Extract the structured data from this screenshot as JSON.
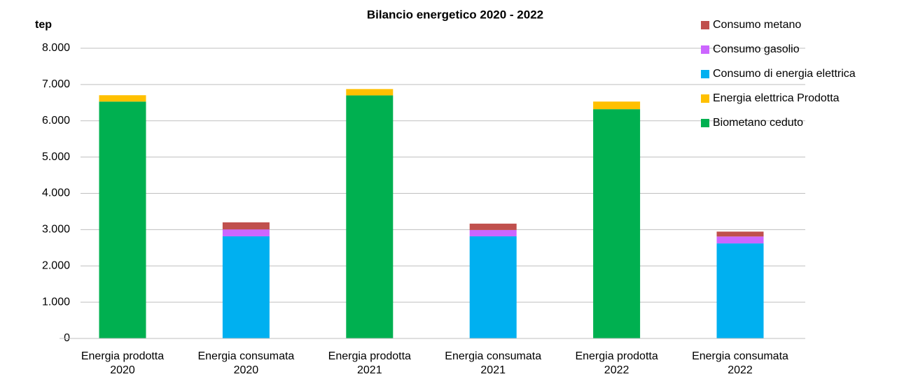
{
  "chart_data": {
    "type": "stacked_bar",
    "title": "Bilancio energetico 2020 - 2022",
    "y_axis_label": "tep",
    "categories": [
      [
        "Energia prodotta",
        "2020"
      ],
      [
        "Energia consumata",
        "2020"
      ],
      [
        "Energia prodotta",
        "2021"
      ],
      [
        "Energia consumata",
        "2021"
      ],
      [
        "Energia prodotta",
        "2022"
      ],
      [
        "Energia consumata",
        "2022"
      ]
    ],
    "series": [
      {
        "name": "Biometano ceduto",
        "color": "#00b050",
        "values": [
          6530,
          0,
          6700,
          0,
          6320,
          0
        ]
      },
      {
        "name": "Energia elettrica Prodotta",
        "color": "#ffc000",
        "values": [
          175,
          0,
          175,
          0,
          210,
          0
        ]
      },
      {
        "name": "Consumo di energia elettrica",
        "color": "#00b0f0",
        "values": [
          0,
          2815,
          0,
          2815,
          0,
          2620
        ]
      },
      {
        "name": "Consumo gasolio",
        "color": "#cc66ff",
        "values": [
          0,
          190,
          0,
          175,
          0,
          190
        ]
      },
      {
        "name": "Consumo metano",
        "color": "#c0504d",
        "values": [
          0,
          195,
          0,
          175,
          0,
          135
        ]
      }
    ],
    "ylim": [
      0,
      8000
    ],
    "yticks": [
      0,
      {
        "value": 1000,
        "label": "1.000"
      },
      {
        "value": 2000,
        "label": "2.000"
      },
      {
        "value": 3000,
        "label": "3.000"
      },
      {
        "value": 4000,
        "label": "4.000"
      },
      {
        "value": 5000,
        "label": "5.000"
      },
      {
        "value": 6000,
        "label": "6.000"
      },
      {
        "value": 7000,
        "label": "7.000"
      },
      {
        "value": 8000,
        "label": "8.000"
      }
    ],
    "grid": true,
    "legend": "top-right"
  }
}
